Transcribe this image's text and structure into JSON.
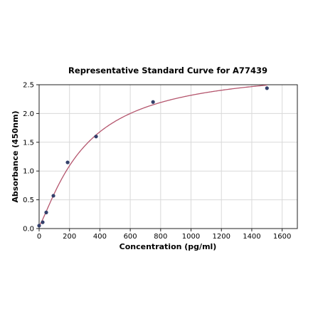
{
  "chart_data": {
    "type": "scatter",
    "title": "Representative Standard Curve for A77439",
    "xlabel": "Concentration (pg/ml)",
    "ylabel": "Absorbance (450nm)",
    "xlim": [
      0,
      1700
    ],
    "ylim": [
      0,
      2.5
    ],
    "x_ticks": [
      0,
      200,
      400,
      600,
      800,
      1000,
      1200,
      1400,
      1600
    ],
    "y_ticks": [
      0.0,
      0.5,
      1.0,
      1.5,
      2.0,
      2.5
    ],
    "x_tick_labels": [
      "0",
      "200",
      "400",
      "600",
      "800",
      "1000",
      "1200",
      "1400",
      "1600"
    ],
    "y_tick_labels": [
      "0.0",
      "0.5",
      "1.0",
      "1.5",
      "2.0",
      "2.5"
    ],
    "grid": true,
    "series": [
      {
        "type": "scatter",
        "x": [
          0,
          23.4,
          46.9,
          93.8,
          187.5,
          375,
          750,
          1500
        ],
        "y": [
          0.05,
          0.11,
          0.28,
          0.57,
          1.15,
          1.6,
          2.2,
          2.44
        ],
        "color": "#34406b"
      },
      {
        "type": "line",
        "fit": "4PL",
        "params": {
          "bottom": 0.05,
          "top": 2.82,
          "ec50": 300,
          "hill": 1.25
        },
        "color": "#b5566e"
      }
    ]
  }
}
